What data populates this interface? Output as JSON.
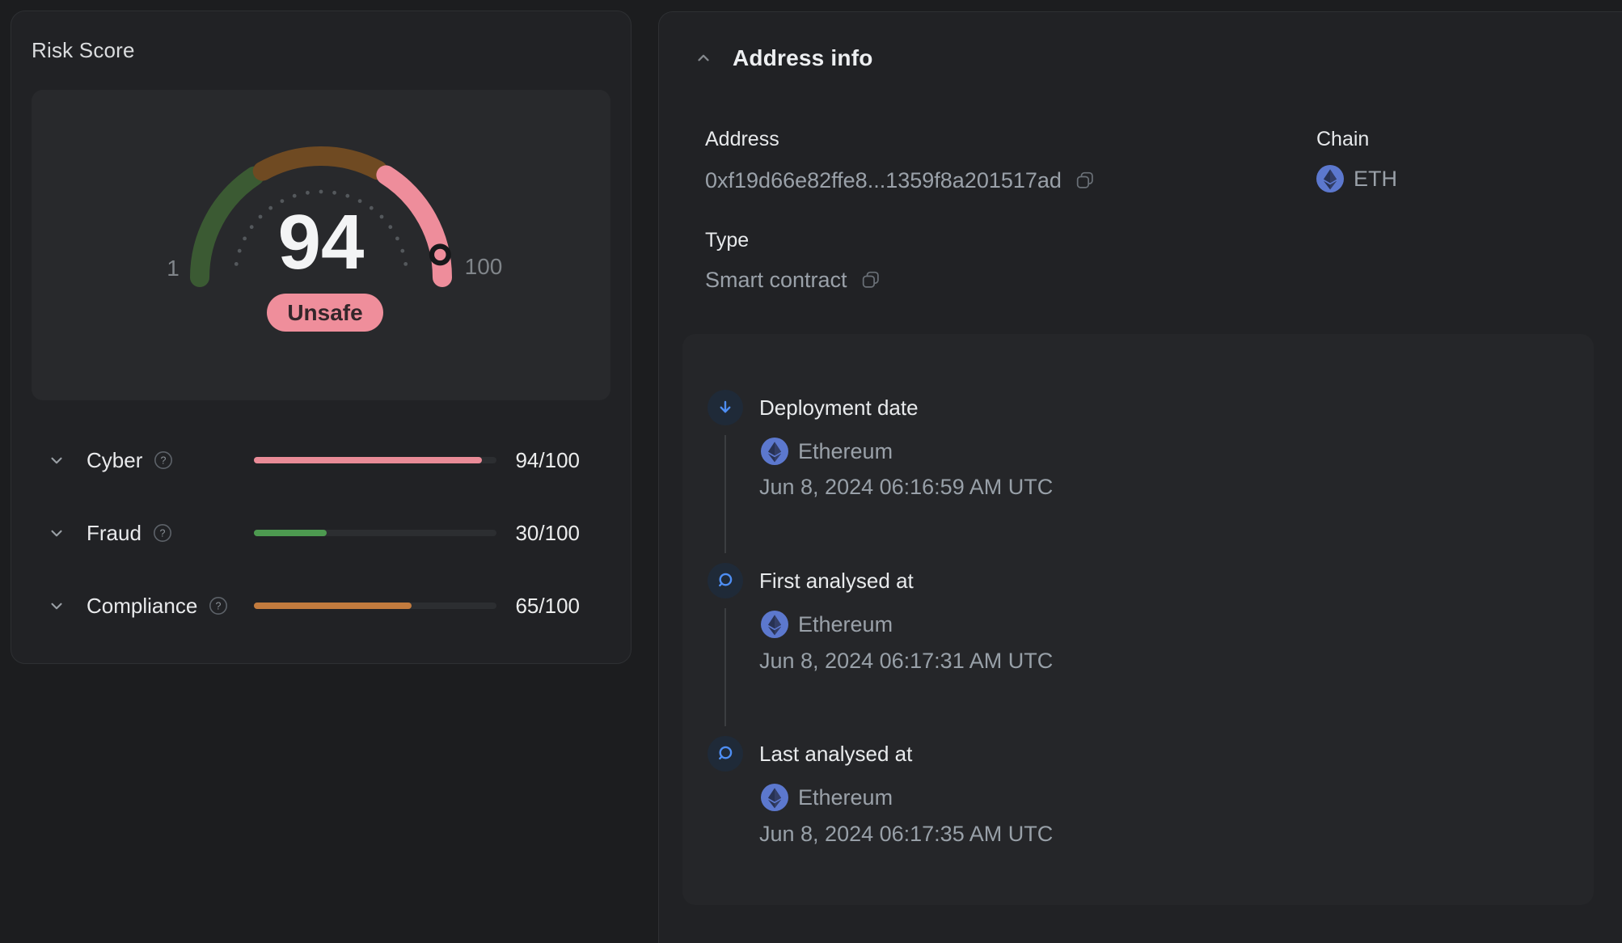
{
  "colors": {
    "pink": "#ee8d9b",
    "gauge_green": "#3b5a33",
    "gauge_brown": "#6f4a22",
    "badge_bg": "#ef8e9b",
    "accent_blue": "#4e8ef3",
    "eth_blue": "#5c78ce",
    "bar_pink": "#e98b97",
    "bar_green": "#4d9a50",
    "bar_orange": "#c27b3e"
  },
  "risk_score": {
    "title": "Risk Score",
    "score_label": "94",
    "min_label": "1",
    "max_label": "100",
    "status_badge": "Unsafe",
    "categories": [
      {
        "label": "Cyber",
        "score": 94,
        "display": "94/100",
        "color": "#e98b97"
      },
      {
        "label": "Fraud",
        "score": 30,
        "display": "30/100",
        "color": "#4d9a50"
      },
      {
        "label": "Compliance",
        "score": 65,
        "display": "65/100",
        "color": "#c27b3e"
      }
    ]
  },
  "address_info": {
    "title": "Address info",
    "address": {
      "label": "Address",
      "value": "0xf19d66e82ffe8...1359f8a201517ad"
    },
    "chain": {
      "label": "Chain",
      "value": "ETH"
    },
    "type": {
      "label": "Type",
      "value": "Smart contract"
    },
    "timeline": [
      {
        "icon": "arrow-down-icon",
        "title": "Deployment date",
        "network": "Ethereum",
        "datetime": "Jun 8, 2024 06:16:59 AM UTC"
      },
      {
        "icon": "magnifier-icon",
        "title": "First analysed at",
        "network": "Ethereum",
        "datetime": "Jun 8, 2024 06:17:31 AM UTC"
      },
      {
        "icon": "magnifier-icon",
        "title": "Last analysed at",
        "network": "Ethereum",
        "datetime": "Jun 8, 2024 06:17:35 AM UTC"
      }
    ]
  },
  "chart_data": {
    "type": "gauge",
    "title": "Risk Score",
    "value": 94,
    "min": 1,
    "max": 100,
    "status": "Unsafe",
    "segments": [
      {
        "from": 0,
        "to": 31.5,
        "color": "#3b5a33"
      },
      {
        "from": 34,
        "to": 65.5,
        "color": "#6f4a22"
      },
      {
        "from": 68,
        "to": 100,
        "color": "#ee8d9b"
      }
    ],
    "ticks": {
      "from": 5,
      "to": 95,
      "step": 5
    },
    "bars": {
      "categories": [
        "Cyber",
        "Fraud",
        "Compliance"
      ],
      "values": [
        94,
        30,
        65
      ],
      "max": 100
    }
  }
}
